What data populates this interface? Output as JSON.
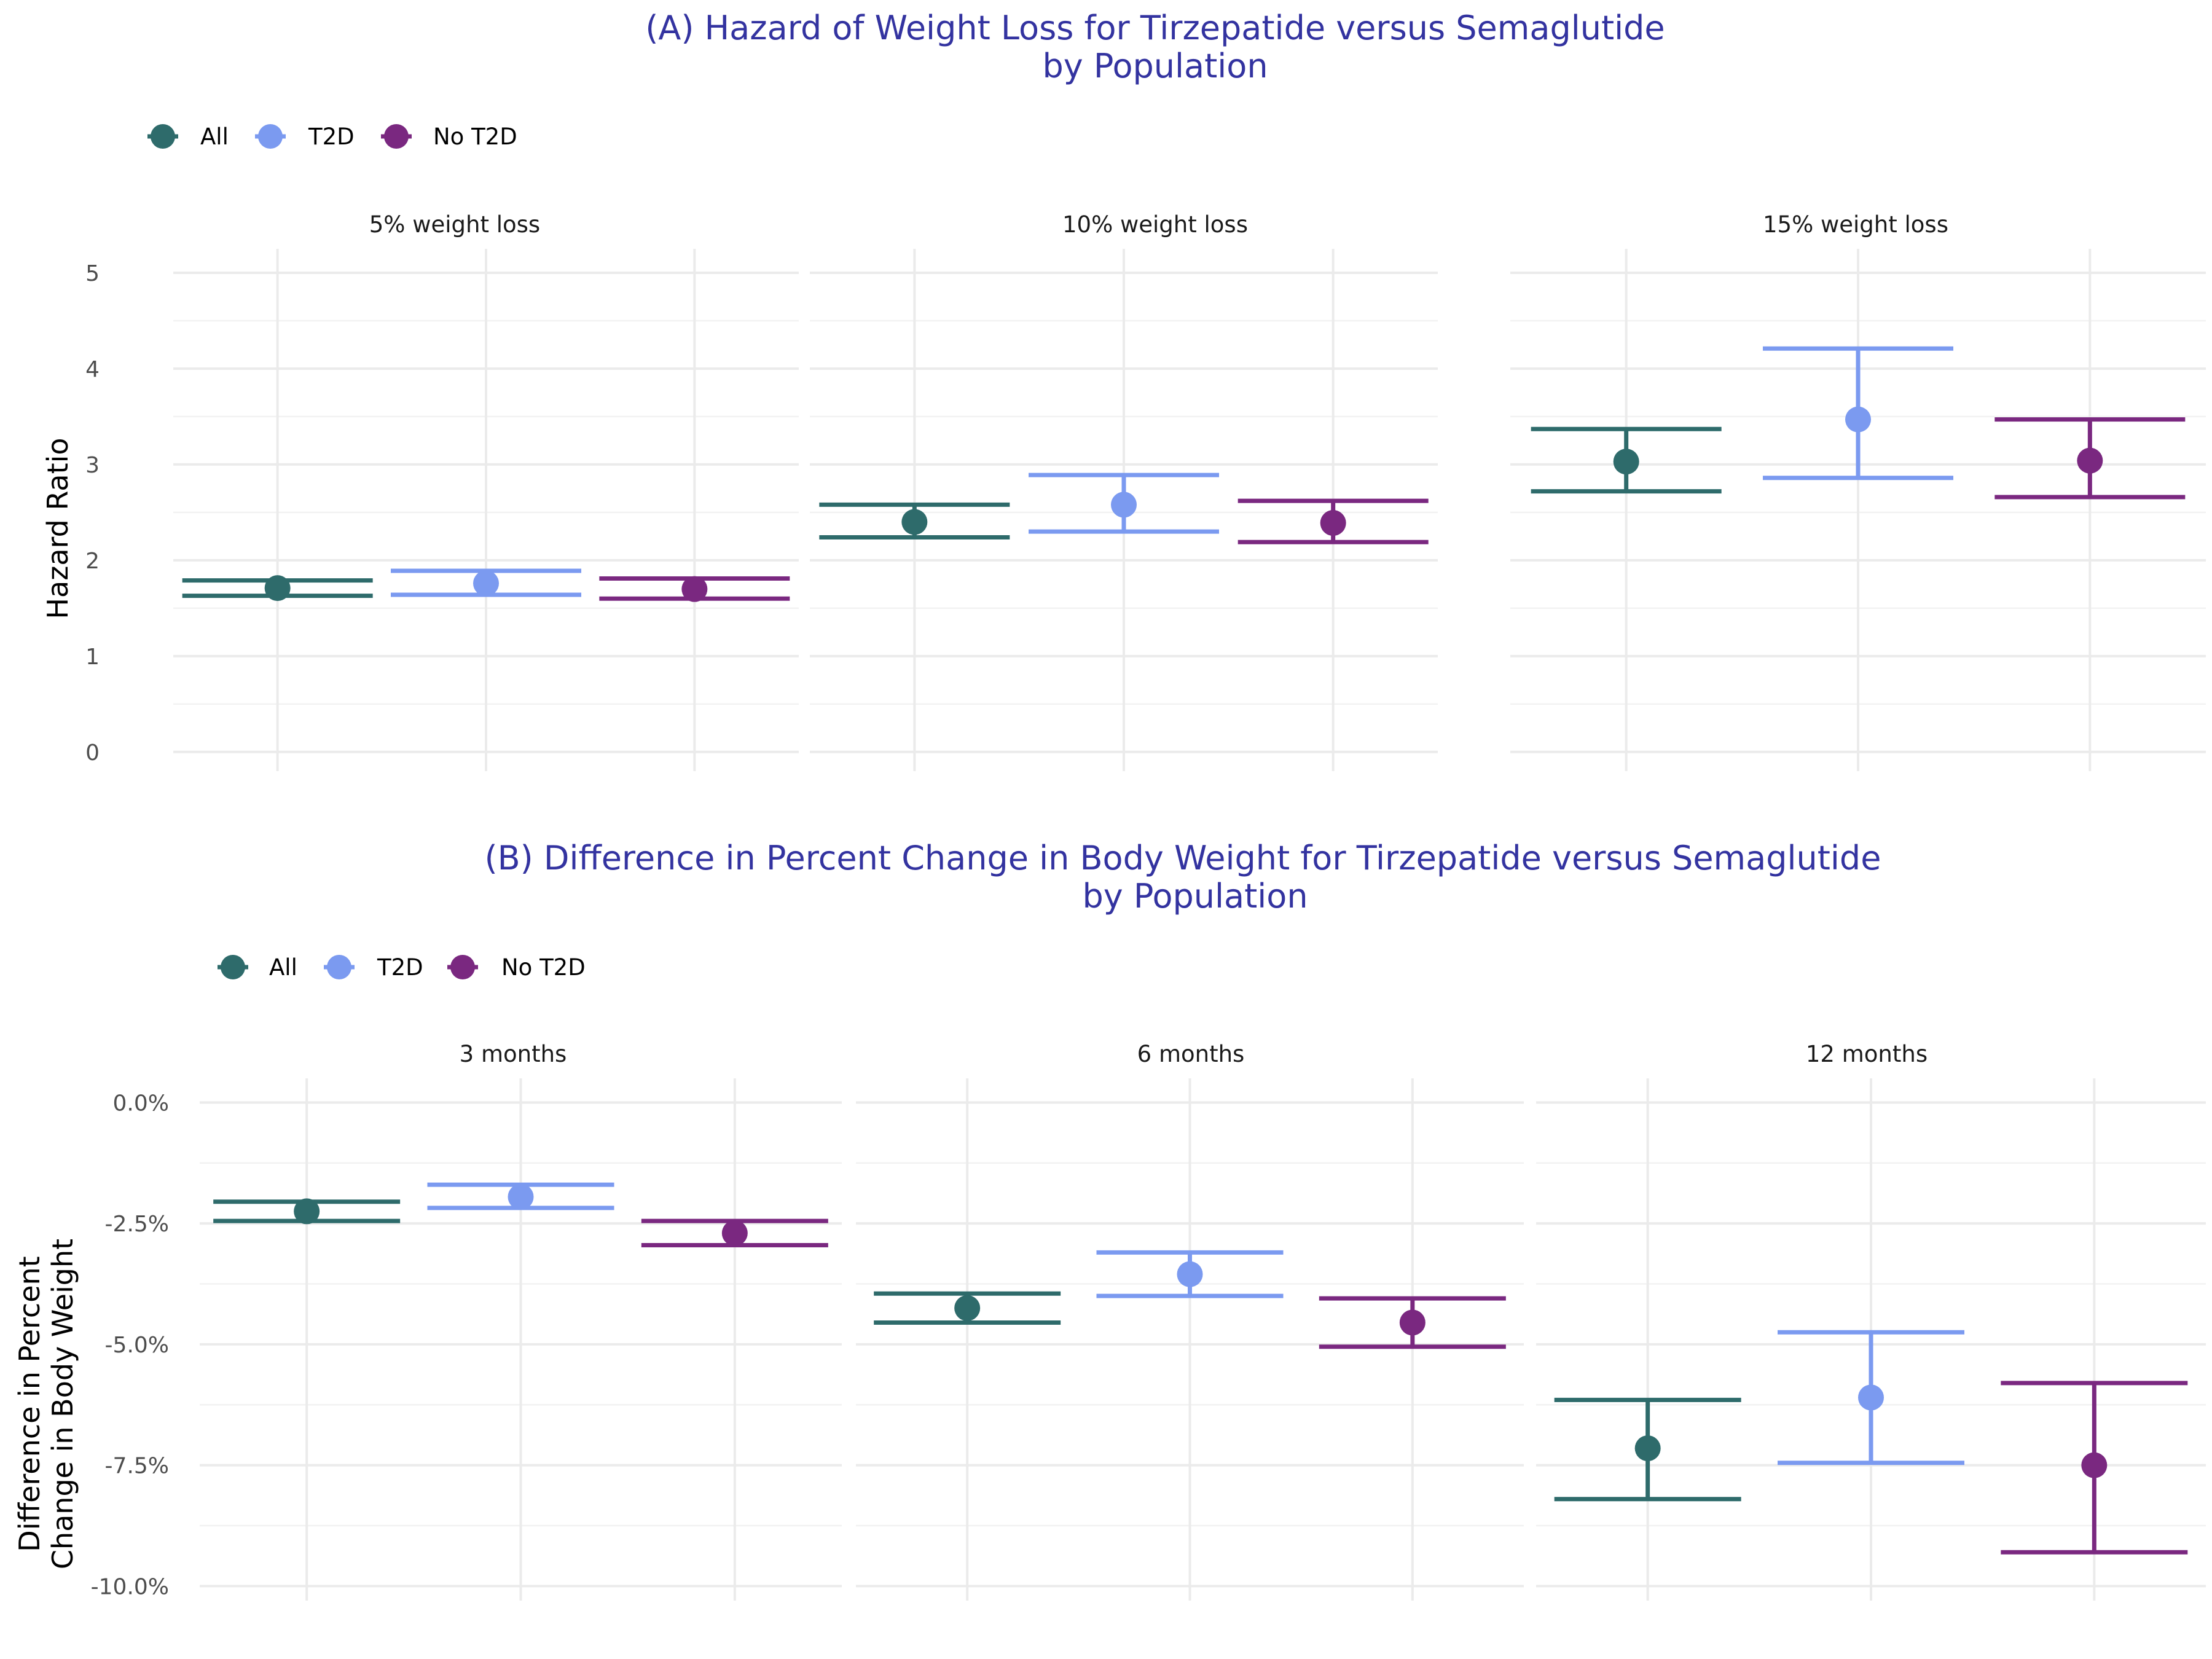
{
  "colors": {
    "All": "#2e6b6b",
    "T2D": "#7b9af0",
    "No T2D": "#7a2880",
    "title": "#3333a0"
  },
  "chart_data": [
    {
      "type": "errorbar",
      "title_lines": [
        "(A) Hazard of Weight Loss for Tirzepatide versus Semaglutide",
        "by Population"
      ],
      "ylabel": "Hazard Ratio",
      "ylabel_lines": [
        "Hazard Ratio"
      ],
      "legend": [
        "All",
        "T2D",
        "No T2D"
      ],
      "legend_position": "top-left",
      "ylim": [
        -0.2,
        5.25
      ],
      "yticks": [
        0,
        1,
        2,
        3,
        4,
        5
      ],
      "ytick_labels": [
        "0",
        "1",
        "2",
        "3",
        "4",
        "5"
      ],
      "grid": true,
      "panels": [
        {
          "label": "5% weight loss",
          "series": [
            {
              "name": "All",
              "estimate": 1.71,
              "lower": 1.63,
              "upper": 1.79
            },
            {
              "name": "T2D",
              "estimate": 1.76,
              "lower": 1.64,
              "upper": 1.89
            },
            {
              "name": "No T2D",
              "estimate": 1.7,
              "lower": 1.6,
              "upper": 1.81
            }
          ]
        },
        {
          "label": "10% weight loss",
          "series": [
            {
              "name": "All",
              "estimate": 2.4,
              "lower": 2.24,
              "upper": 2.58
            },
            {
              "name": "T2D",
              "estimate": 2.58,
              "lower": 2.3,
              "upper": 2.89
            },
            {
              "name": "No T2D",
              "estimate": 2.39,
              "lower": 2.19,
              "upper": 2.62
            }
          ]
        },
        {
          "label": "15% weight loss",
          "series": [
            {
              "name": "All",
              "estimate": 3.03,
              "lower": 2.72,
              "upper": 3.37
            },
            {
              "name": "T2D",
              "estimate": 3.47,
              "lower": 2.86,
              "upper": 4.21
            },
            {
              "name": "No T2D",
              "estimate": 3.04,
              "lower": 2.66,
              "upper": 3.47
            }
          ]
        }
      ]
    },
    {
      "type": "errorbar",
      "title_lines": [
        "(B) Difference in Percent Change in Body Weight for Tirzepatide versus Semaglutide",
        "by Population"
      ],
      "ylabel": "Difference in Percent Change in Body Weight",
      "ylabel_lines": [
        "Difference in Percent",
        "Change in Body Weight"
      ],
      "legend": [
        "All",
        "T2D",
        "No T2D"
      ],
      "legend_position": "top-left",
      "ylim": [
        -10.3,
        0.5
      ],
      "yticks": [
        0,
        -2.5,
        -5,
        -7.5,
        -10
      ],
      "ytick_labels": [
        "0.0%",
        "-2.5%",
        "-5.0%",
        "-7.5%",
        "-10.0%"
      ],
      "grid": true,
      "panels": [
        {
          "label": "3 months",
          "series": [
            {
              "name": "All",
              "estimate": -2.25,
              "lower": -2.45,
              "upper": -2.05
            },
            {
              "name": "T2D",
              "estimate": -1.95,
              "lower": -2.18,
              "upper": -1.7
            },
            {
              "name": "No T2D",
              "estimate": -2.7,
              "lower": -2.95,
              "upper": -2.45
            }
          ]
        },
        {
          "label": "6 months",
          "series": [
            {
              "name": "All",
              "estimate": -4.25,
              "lower": -4.55,
              "upper": -3.95
            },
            {
              "name": "T2D",
              "estimate": -3.55,
              "lower": -4.0,
              "upper": -3.1
            },
            {
              "name": "No T2D",
              "estimate": -4.55,
              "lower": -5.05,
              "upper": -4.05
            }
          ]
        },
        {
          "label": "12 months",
          "series": [
            {
              "name": "All",
              "estimate": -7.15,
              "lower": -8.2,
              "upper": -6.15
            },
            {
              "name": "T2D",
              "estimate": -6.1,
              "lower": -7.45,
              "upper": -4.75
            },
            {
              "name": "No T2D",
              "estimate": -7.5,
              "lower": -9.3,
              "upper": -5.8
            }
          ]
        }
      ]
    }
  ]
}
